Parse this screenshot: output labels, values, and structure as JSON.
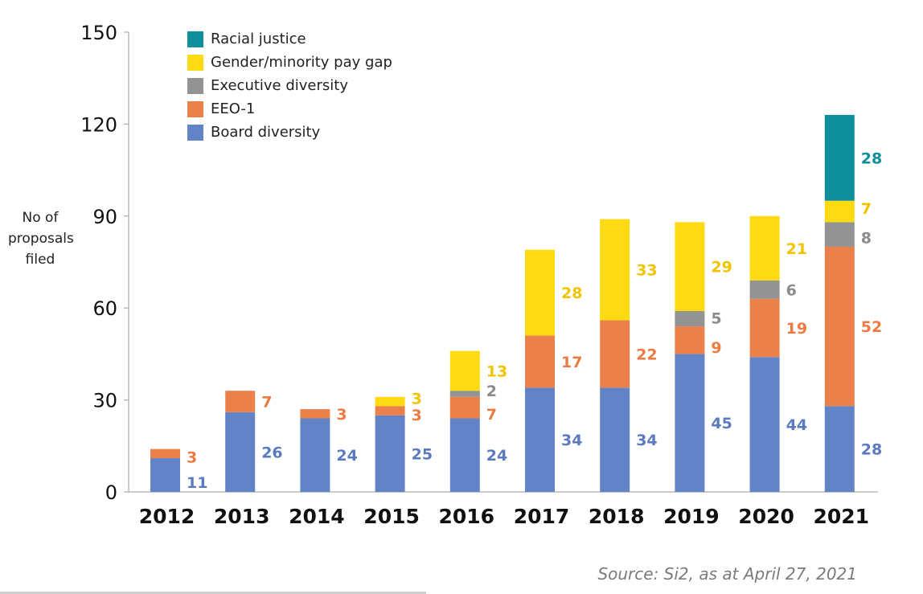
{
  "chart_data": {
    "type": "bar",
    "stacked": true,
    "ylabel_lines": [
      "No of",
      "proposals",
      "filed"
    ],
    "ylim": [
      0,
      150
    ],
    "yticks": [
      0,
      30,
      60,
      90,
      120,
      150
    ],
    "categories": [
      "2012",
      "2013",
      "2014",
      "2015",
      "2016",
      "2017",
      "2018",
      "2019",
      "2020",
      "2021"
    ],
    "series": [
      {
        "name": "Board diversity",
        "color": "#6283c5",
        "values": [
          11,
          26,
          24,
          25,
          24,
          34,
          34,
          45,
          44,
          28
        ]
      },
      {
        "name": "EEO-1",
        "color": "#ec804b",
        "values": [
          3,
          7,
          3,
          3,
          7,
          17,
          22,
          9,
          19,
          52
        ]
      },
      {
        "name": "Executive diversity",
        "color": "#939393",
        "values": [
          null,
          null,
          null,
          null,
          2,
          null,
          null,
          5,
          6,
          8
        ]
      },
      {
        "name": "Gender/minority pay gap",
        "color": "#fdda12",
        "values": [
          null,
          null,
          null,
          3,
          13,
          28,
          33,
          29,
          21,
          7
        ]
      },
      {
        "name": "Racial justice",
        "color": "#0f8f9c",
        "values": [
          null,
          null,
          null,
          null,
          null,
          null,
          null,
          null,
          null,
          28
        ]
      }
    ],
    "legend_order": [
      "Racial justice",
      "Gender/minority pay gap",
      "Executive diversity",
      "EEO-1",
      "Board diversity"
    ],
    "legend_position": "top-left",
    "label_colors": {
      "Board diversity": "#5a7bc0",
      "EEO-1": "#ec7a43",
      "Executive diversity": "#8c8c8c",
      "Gender/minority pay gap": "#f2c400",
      "Racial justice": "#0f8f9c"
    },
    "source": "Source: Si2, as at April 27, 2021"
  }
}
